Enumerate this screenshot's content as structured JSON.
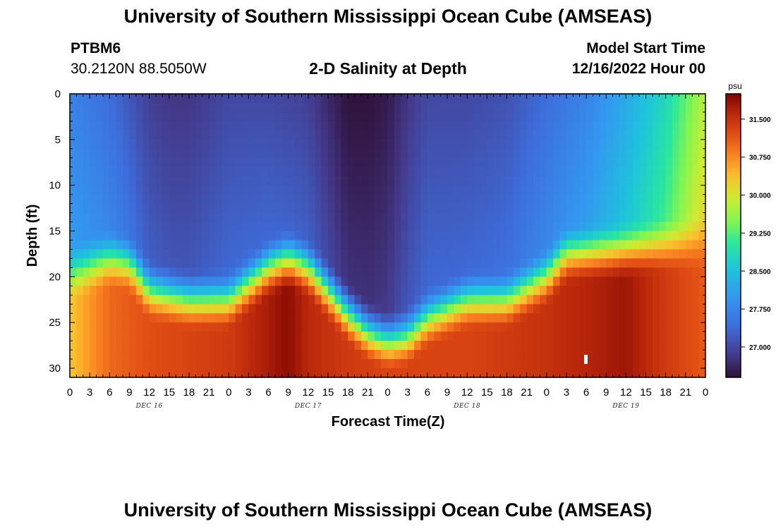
{
  "header": {
    "title": "University of Southern Mississippi Ocean Cube (AMSEAS)",
    "station_id": "PTBM6",
    "station_coords": "30.2120N  88.5050W",
    "chart_title": "2-D Salinity at Depth",
    "model_start_label": "Model Start Time",
    "model_start_value": "12/16/2022 Hour 00"
  },
  "footer": {
    "title": "University of Southern Mississippi Ocean Cube (AMSEAS)"
  },
  "chart_data": {
    "type": "heatmap",
    "title": "2-D Salinity at Depth",
    "xlabel": "Forecast Time(Z)",
    "ylabel": "Depth (ft)",
    "x_unit": "hours since model start",
    "xlim": [
      0,
      96
    ],
    "ylim": [
      31,
      0
    ],
    "x_tick_values": [
      0,
      3,
      6,
      9,
      12,
      15,
      18,
      21,
      24,
      27,
      30,
      33,
      36,
      39,
      42,
      45,
      48,
      51,
      54,
      57,
      60,
      63,
      66,
      69,
      72,
      75,
      78,
      81,
      84,
      87,
      90,
      93,
      96
    ],
    "x_tick_labels": [
      "0",
      "3",
      "6",
      "9",
      "12",
      "15",
      "18",
      "21",
      "0",
      "3",
      "6",
      "9",
      "12",
      "15",
      "18",
      "21",
      "0",
      "3",
      "6",
      "9",
      "12",
      "15",
      "18",
      "21",
      "0",
      "3",
      "6",
      "9",
      "12",
      "15",
      "18",
      "21",
      "0"
    ],
    "day_labels": [
      {
        "text": "DEC 16",
        "x": 12
      },
      {
        "text": "DEC 17",
        "x": 36
      },
      {
        "text": "DEC 18",
        "x": 60
      },
      {
        "text": "DEC 19",
        "x": 84
      }
    ],
    "y_tick_values": [
      0,
      5,
      10,
      15,
      20,
      25,
      30
    ],
    "y_tick_labels": [
      "0",
      "5",
      "10",
      "15",
      "20",
      "25",
      "30"
    ],
    "colorbar": {
      "unit": "psu",
      "min": 26.4,
      "max": 32.0,
      "tick_values": [
        27.0,
        27.75,
        28.5,
        29.25,
        30.0,
        30.75,
        31.5
      ],
      "tick_labels": [
        "27.000",
        "27.750",
        "28.500",
        "29.250",
        "30.000",
        "30.750",
        "31.500"
      ]
    },
    "surface_salinity_hours": [
      0,
      6,
      12,
      15,
      18,
      21,
      24,
      30,
      36,
      42,
      45,
      48,
      51,
      54,
      60,
      66,
      72,
      78,
      84,
      90,
      96
    ],
    "surface_salinity_values": [
      27.7,
      27.4,
      26.9,
      26.8,
      26.8,
      26.9,
      27.0,
      27.0,
      26.9,
      26.4,
      26.4,
      26.5,
      26.8,
      27.0,
      27.0,
      27.1,
      27.4,
      27.7,
      28.2,
      28.8,
      29.8
    ],
    "halocline_depth_hours": [
      0,
      6,
      9,
      12,
      18,
      24,
      30,
      33,
      36,
      39,
      42,
      45,
      48,
      51,
      54,
      60,
      66,
      72,
      75,
      84,
      96
    ],
    "halocline_depth_ft": [
      19.0,
      17.5,
      18.0,
      21.0,
      22.0,
      22.0,
      18.5,
      17.5,
      18.5,
      21.0,
      23.5,
      25.5,
      26.5,
      26.0,
      24.0,
      22.0,
      22.0,
      19.5,
      17.0,
      16.5,
      15.5
    ],
    "bottom_salinity_hours": [
      0,
      6,
      12,
      24,
      33,
      36,
      42,
      48,
      60,
      72,
      84,
      90,
      96
    ],
    "bottom_salinity_values": [
      30.3,
      31.0,
      31.2,
      31.4,
      31.9,
      31.6,
      31.4,
      31.3,
      31.3,
      31.5,
      31.8,
      31.4,
      31.1
    ]
  }
}
